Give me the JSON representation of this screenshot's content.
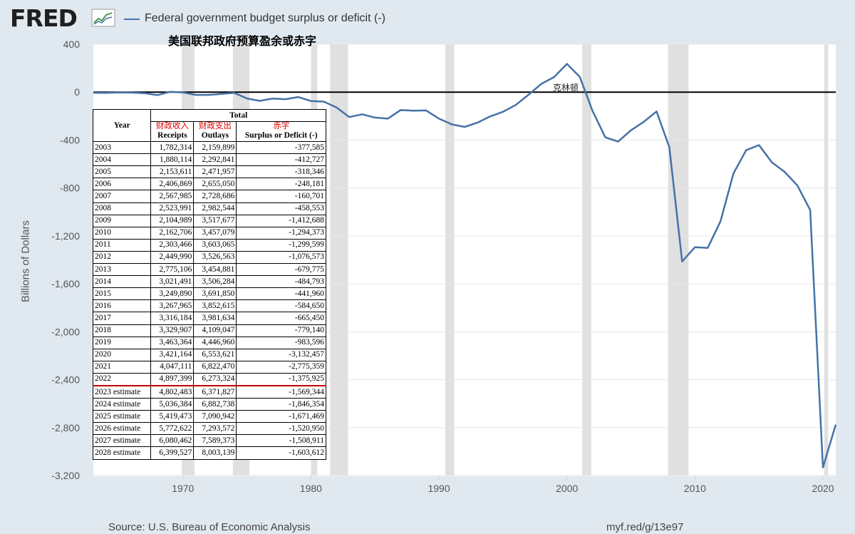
{
  "header": {
    "logo_text": "FRED",
    "legend_label": "Federal government budget surplus or deficit (-)",
    "subtitle_cn": "美国联邦政府预算盈余或赤字"
  },
  "colors": {
    "line": "#4572a7",
    "background": "#e1e9f0",
    "plot_bg": "#ffffff",
    "recession": "#e0e0e0"
  },
  "footer": {
    "source": "Source: U.S. Bureau of Economic Analysis",
    "url": "myf.red/g/13e97"
  },
  "annotation": {
    "label": "克林顿"
  },
  "chart_data": {
    "type": "line",
    "ylabel": "Billions of Dollars",
    "ylim": [
      -3200,
      400
    ],
    "yticks": [
      400,
      0,
      -400,
      -800,
      -1200,
      -1600,
      -2000,
      -2400,
      -2800,
      -3200
    ],
    "ytick_labels": [
      "400",
      "0",
      "-400",
      "-800",
      "-1,200",
      "-1,600",
      "-2,000",
      "-2,400",
      "-2,800",
      "-3,200"
    ],
    "xlim": [
      1963,
      2021
    ],
    "xticks": [
      1970,
      1980,
      1990,
      2000,
      2010,
      2020
    ],
    "xtick_labels": [
      "1970",
      "1980",
      "1990",
      "2000",
      "2010",
      "2020"
    ],
    "recessions": [
      [
        1969.9,
        1970.9
      ],
      [
        1973.9,
        1975.2
      ],
      [
        1980.0,
        1980.5
      ],
      [
        1981.5,
        1982.9
      ],
      [
        1990.5,
        1991.2
      ],
      [
        2001.2,
        2001.9
      ],
      [
        2007.9,
        2009.5
      ],
      [
        2020.1,
        2020.4
      ]
    ],
    "zero_line": true,
    "series": [
      {
        "name": "Federal government budget surplus or deficit (-)",
        "x": [
          1963,
          1964,
          1965,
          1966,
          1967,
          1968,
          1969,
          1970,
          1971,
          1972,
          1973,
          1974,
          1975,
          1976,
          1977,
          1978,
          1979,
          1980,
          1981,
          1982,
          1983,
          1984,
          1985,
          1986,
          1987,
          1988,
          1989,
          1990,
          1991,
          1992,
          1993,
          1994,
          1995,
          1996,
          1997,
          1998,
          1999,
          2000,
          2001,
          2002,
          2003,
          2004,
          2005,
          2006,
          2007,
          2008,
          2009,
          2010,
          2011,
          2012,
          2013,
          2014,
          2015,
          2016,
          2017,
          2018,
          2019,
          2020,
          2021
        ],
        "values": [
          -5,
          -6,
          -2,
          -4,
          -9,
          -25,
          3,
          -3,
          -23,
          -23,
          -15,
          -6,
          -53,
          -73,
          -54,
          -59,
          -41,
          -74,
          -79,
          -128,
          -208,
          -185,
          -212,
          -221,
          -150,
          -155,
          -153,
          -221,
          -269,
          -290,
          -255,
          -203,
          -164,
          -107,
          -22,
          69,
          126,
          236,
          128,
          -158,
          -378,
          -413,
          -318,
          -248,
          -161,
          -459,
          -1413,
          -1294,
          -1300,
          -1077,
          -680,
          -485,
          -442,
          -585,
          -665,
          -779,
          -984,
          -3132,
          -2775
        ]
      }
    ]
  },
  "table": {
    "header_total": "Total",
    "header_year": "Year",
    "headers": [
      {
        "cn": "财政收入",
        "en": "Receipts"
      },
      {
        "cn": "财政支出",
        "en": "Outlays"
      },
      {
        "cn": "赤字",
        "en": "Surplus or Deficit (-)"
      }
    ],
    "rows": [
      [
        "2003",
        "1,782,314",
        "2,159,899",
        "-377,585"
      ],
      [
        "2004",
        "1,880,114",
        "2,292,841",
        "-412,727"
      ],
      [
        "2005",
        "2,153,611",
        "2,471,957",
        "-318,346"
      ],
      [
        "2006",
        "2,406,869",
        "2,655,050",
        "-248,181"
      ],
      [
        "2007",
        "2,567,985",
        "2,728,686",
        "-160,701"
      ],
      [
        "2008",
        "2,523,991",
        "2,982,544",
        "-458,553"
      ],
      [
        "2009",
        "2,104,989",
        "3,517,677",
        "-1,412,688"
      ],
      [
        "2010",
        "2,162,706",
        "3,457,079",
        "-1,294,373"
      ],
      [
        "2011",
        "2,303,466",
        "3,603,065",
        "-1,299,599"
      ],
      [
        "2012",
        "2,449,990",
        "3,526,563",
        "-1,076,573"
      ],
      [
        "2013",
        "2,775,106",
        "3,454,881",
        "-679,775"
      ],
      [
        "2014",
        "3,021,491",
        "3,506,284",
        "-484,793"
      ],
      [
        "2015",
        "3,249,890",
        "3,691,850",
        "-441,960"
      ],
      [
        "2016",
        "3,267,965",
        "3,852,615",
        "-584,650"
      ],
      [
        "2017",
        "3,316,184",
        "3,981,634",
        "-665,450"
      ],
      [
        "2018",
        "3,329,907",
        "4,109,047",
        "-779,140"
      ],
      [
        "2019",
        "3,463,364",
        "4,446,960",
        "-983,596"
      ],
      [
        "2020",
        "3,421,164",
        "6,553,621",
        "-3,132,457"
      ],
      [
        "2021",
        "4,047,111",
        "6,822,470",
        "-2,775,359"
      ],
      [
        "2022",
        "4,897,399",
        "6,273,324",
        "-1,375,925"
      ],
      [
        "2023 estimate",
        "4,802,483",
        "6,371,827",
        "-1,569,344"
      ],
      [
        "2024 estimate",
        "5,036,384",
        "6,882,738",
        "-1,846,354"
      ],
      [
        "2025 estimate",
        "5,419,473",
        "7,090,942",
        "-1,671,469"
      ],
      [
        "2026 estimate",
        "5,772,622",
        "7,293,572",
        "-1,520,950"
      ],
      [
        "2027 estimate",
        "6,080,462",
        "7,589,373",
        "-1,508,911"
      ],
      [
        "2028 estimate",
        "6,399,527",
        "8,003,139",
        "-1,603,612"
      ]
    ]
  }
}
